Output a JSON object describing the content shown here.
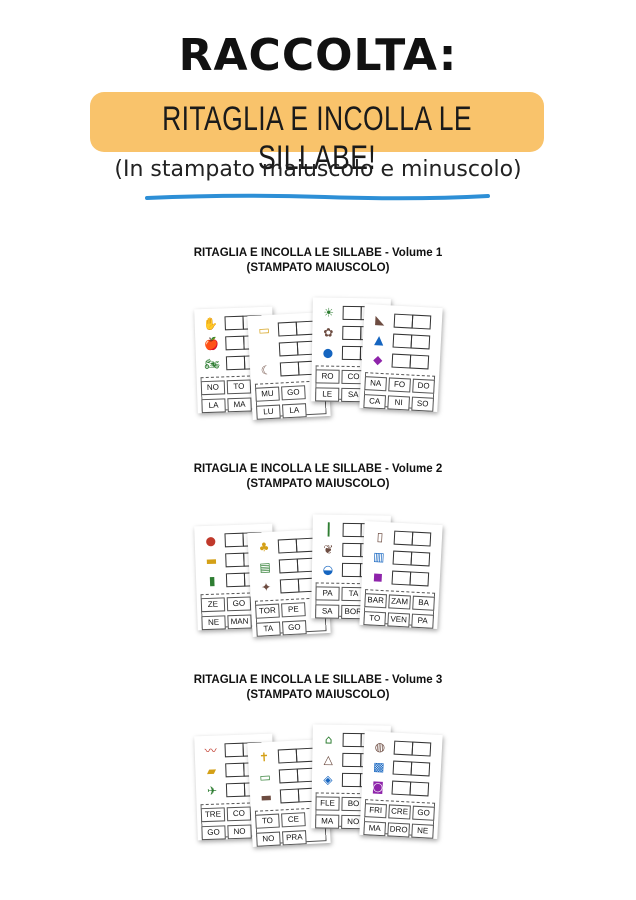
{
  "header": {
    "title": "RACCOLTA:",
    "banner": "RITAGLIA E INCOLLA LE SILLABE!",
    "subtitle": "(In stampato maiuscolo e minuscolo)"
  },
  "colors": {
    "banner": "#f9c36b",
    "underline": "#2d8fd6"
  },
  "volumes": [
    {
      "title_line1": "RITAGLIA E INCOLLA LE SILLABE - Volume 1",
      "title_line2": "(STAMPATO MAIUSCOLO)",
      "sheets": [
        {
          "icons": [
            "hand-icon",
            "apple-icon",
            "motorbike-icon"
          ],
          "glyphs": [
            "✋",
            "🍎",
            "🏍"
          ],
          "syllables": [
            "NO",
            "TO",
            "LA",
            "MA"
          ]
        },
        {
          "icons": [
            "rug-icon",
            "",
            "moon-icon"
          ],
          "glyphs": [
            "▭",
            "",
            "☾"
          ],
          "syllables": [
            "MU",
            "GO",
            "LU",
            "LA"
          ]
        },
        {
          "icons": [
            "sun-icon",
            "rose-icon",
            "fig-icon"
          ],
          "glyphs": [
            "☀",
            "✿",
            "●"
          ],
          "syllables": [
            "RO",
            "CO",
            "LE",
            "SA"
          ]
        },
        {
          "icons": [
            "seal-icon",
            "nose-icon",
            "jar-icon"
          ],
          "glyphs": [
            "◣",
            "▲",
            "◆"
          ],
          "syllables": [
            "NA",
            "FO",
            "DO",
            "CA",
            "NI",
            "SO"
          ]
        }
      ]
    },
    {
      "title_line1": "RITAGLIA E INCOLLA LE SILLABE - Volume 2",
      "title_line2": "(STAMPATO MAIUSCOLO)",
      "sheets": [
        {
          "icons": [
            "lemon-icon",
            "steak-icon",
            "socks-icon"
          ],
          "glyphs": [
            "●",
            "▬",
            "▮"
          ],
          "syllables": [
            "ZE",
            "GO",
            "NE",
            "MAN"
          ]
        },
        {
          "icons": [
            "mushroom-icon",
            "cake-icon",
            "fox-icon"
          ],
          "glyphs": [
            "♣",
            "▤",
            "✦"
          ],
          "syllables": [
            "TOR",
            "PE",
            "TA",
            "GO"
          ]
        },
        {
          "icons": [
            "pump-icon",
            "leaf-icon",
            "bag-icon"
          ],
          "glyphs": [
            "┃",
            "❦",
            "◒"
          ],
          "syllables": [
            "PA",
            "TA",
            "SA",
            "BOR"
          ]
        },
        {
          "icons": [
            "bottle-icon",
            "cloth-icon",
            "beard-icon"
          ],
          "glyphs": [
            "▯",
            "▥",
            "◼"
          ],
          "syllables": [
            "BAR",
            "ZAM",
            "BA",
            "TO",
            "VEN",
            "PA"
          ]
        }
      ]
    },
    {
      "title_line1": "RITAGLIA E INCOLLA LE SILLABE - Volume 3",
      "title_line2": "(STAMPATO MAIUSCOLO)",
      "sheets": [
        {
          "icons": [
            "caterpillar-icon",
            "train-icon",
            "bird-icon"
          ],
          "glyphs": [
            "〰",
            "▰",
            "✈"
          ],
          "syllables": [
            "TRE",
            "CO",
            "GO",
            "NO"
          ]
        },
        {
          "icons": [
            "cross-icon",
            "sign-icon",
            "grass-icon"
          ],
          "glyphs": [
            "✝",
            "▭",
            "▬"
          ],
          "syllables": [
            "TO",
            "CE",
            "NO",
            "PRA"
          ]
        },
        {
          "icons": [
            "chair-icon",
            "hanger-icon",
            "faucet-icon"
          ],
          "glyphs": [
            "⌂",
            "△",
            "◈"
          ],
          "syllables": [
            "FLE",
            "BO",
            "MA",
            "NO"
          ]
        },
        {
          "icons": [
            "pot-icon",
            "jar-icon",
            "candy-icon"
          ],
          "glyphs": [
            "◍",
            "▩",
            "◙"
          ],
          "syllables": [
            "FRI",
            "CRE",
            "GO",
            "MA",
            "DRO",
            "NE"
          ]
        }
      ]
    }
  ]
}
